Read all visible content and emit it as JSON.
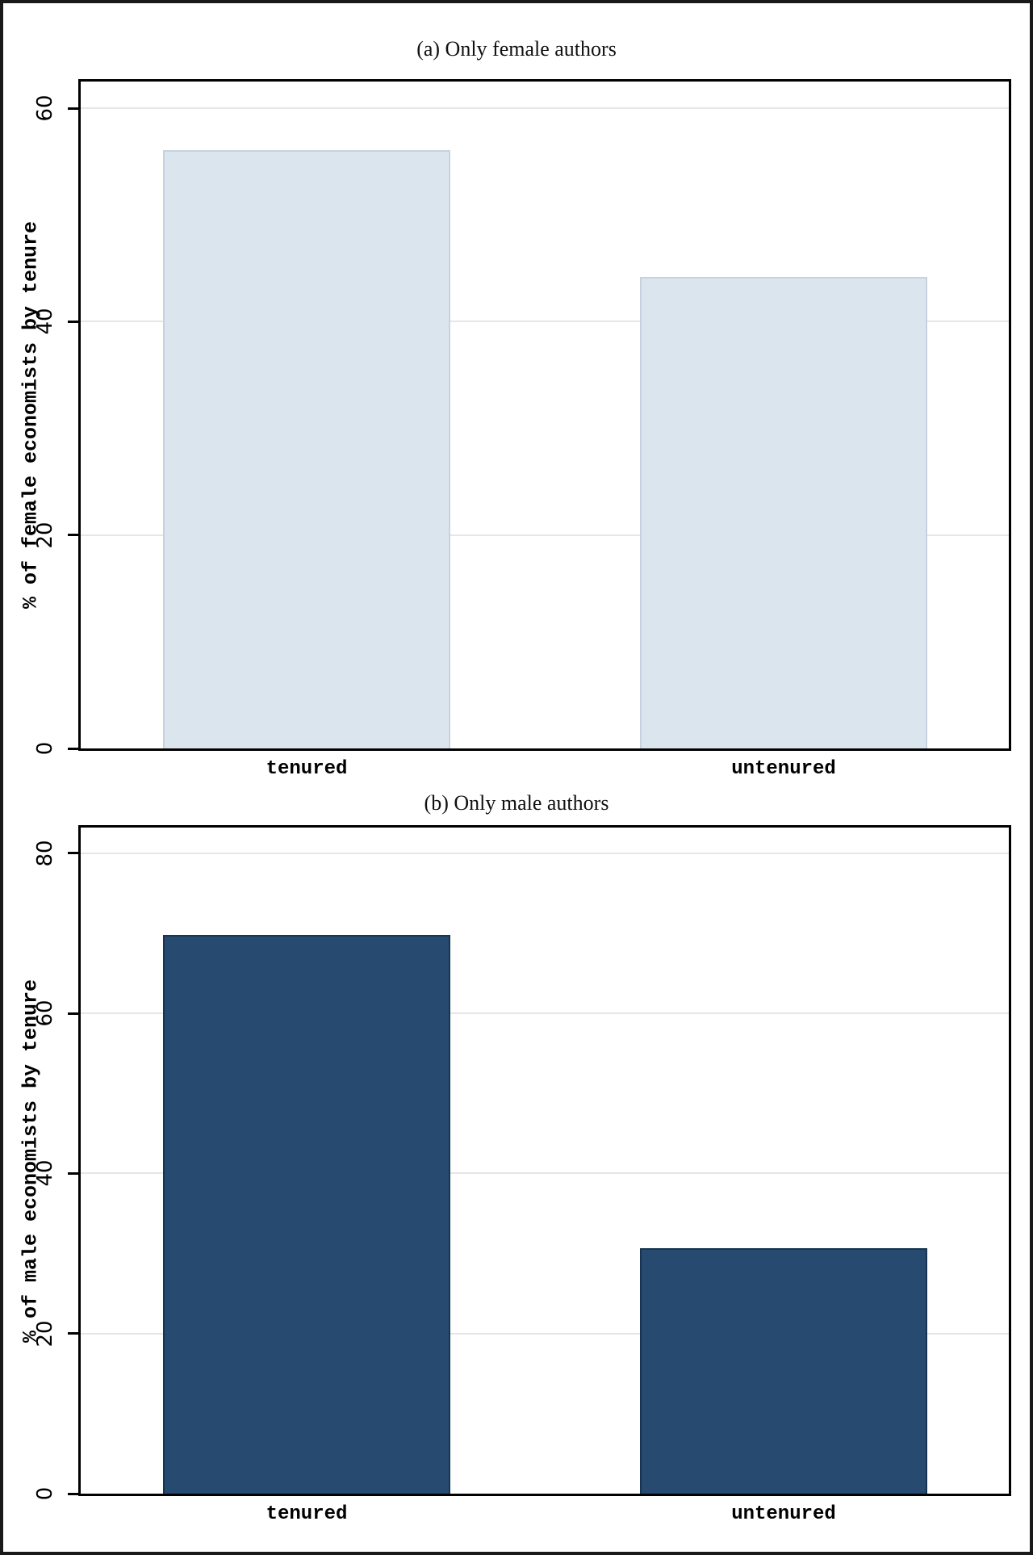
{
  "figure": {
    "background": "#ffffff",
    "border_color": "#1a1a1a",
    "axis_color": "#000000",
    "gridline_color": "#e6e6e6",
    "tick_label_color": "#000000"
  },
  "chart_data": [
    {
      "type": "bar",
      "title": "(a) Only female authors",
      "ylabel": "% of female economists by tenure",
      "xlabel": "",
      "categories": [
        "tenured",
        "untenured"
      ],
      "values": [
        56.1,
        44.2
      ],
      "yticks": [
        0,
        20,
        40,
        60
      ],
      "ylim": [
        0,
        62.5
      ],
      "grid": true,
      "legend": "none",
      "bar_color": "#dbe5ee",
      "bar_edge_color": "#c5d3e0"
    },
    {
      "type": "bar",
      "title": "(b) Only male authors",
      "ylabel": "% of male economists by tenure",
      "xlabel": "",
      "categories": [
        "tenured",
        "untenured"
      ],
      "values": [
        69.8,
        30.7
      ],
      "yticks": [
        0,
        20,
        40,
        60,
        80
      ],
      "ylim": [
        0,
        83.2
      ],
      "grid": true,
      "legend": "none",
      "bar_color": "#264a70",
      "bar_edge_color": "#173450"
    }
  ]
}
